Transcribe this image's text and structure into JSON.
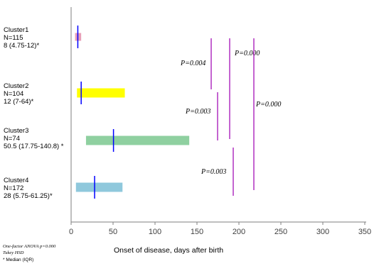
{
  "chart_data": {
    "type": "bar",
    "xlabel": "Onset of disease, days after birth",
    "xlim": [
      0,
      350
    ],
    "xticks": [
      0,
      50,
      100,
      150,
      200,
      250,
      300,
      350
    ],
    "grid": false,
    "clusters": [
      {
        "lines": [
          "Cluster1",
          "N=115",
          "8 (4.75-12)*"
        ],
        "median": 8,
        "q1": 4.75,
        "q3": 12,
        "color": "#e8a0b8"
      },
      {
        "lines": [
          "Cluster2",
          "N=104",
          "12 (7-64)*"
        ],
        "median": 12,
        "q1": 7,
        "q3": 64,
        "color": "#ffff00"
      },
      {
        "lines": [
          "Cluster3",
          "N=74",
          "50.5 (17.75-140.8) *"
        ],
        "median": 50.5,
        "q1": 17.75,
        "q3": 140.8,
        "color": "#8fd0a0"
      },
      {
        "lines": [
          "Cluster4",
          "N=172",
          "28 (5.75-61.25)*"
        ],
        "median": 28,
        "q1": 5.75,
        "q3": 61.25,
        "color": "#8fc8dc"
      }
    ],
    "comparisons": [
      {
        "label": "P=0.004",
        "pair": [
          1,
          2
        ]
      },
      {
        "label": "P=0.000",
        "pair": [
          1,
          3
        ]
      },
      {
        "label": "P=0.003",
        "pair": [
          2,
          3
        ]
      },
      {
        "label": "P=0.000",
        "pair": [
          1,
          4
        ]
      },
      {
        "label": "P=0.003",
        "pair": [
          3,
          4
        ]
      }
    ],
    "median_line_color": "#0000ff",
    "comparison_line_color": "#b030c0"
  },
  "footnote": {
    "line1": "One-factor ANOVA p=0.000",
    "line2": "Tukey HSD",
    "line3": "* Median (IQR)"
  }
}
